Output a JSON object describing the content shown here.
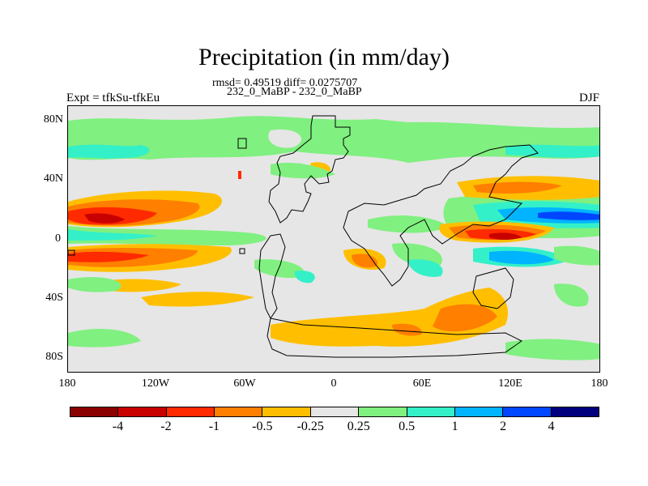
{
  "title": "Precipitation (in mm/day)",
  "stats_line": "rmsd= 0.49519 diff= 0.0275707",
  "case_line": "232_0_MaBP - 232_0_MaBP",
  "experiment": "Expt = tfkSu-tfkEu",
  "season": "DJF",
  "y_ticks": [
    "80N",
    "40N",
    "0",
    "40S",
    "80S"
  ],
  "x_ticks": [
    "180",
    "120W",
    "60W",
    "0",
    "60E",
    "120E",
    "180"
  ],
  "colorbar": {
    "colors": [
      "#8b0000",
      "#c80000",
      "#ff2a00",
      "#ff7f00",
      "#ffbf00",
      "#e6e6e6",
      "#80f080",
      "#33f0c8",
      "#00b4ff",
      "#0046ff",
      "#00007f"
    ],
    "labels": [
      "-4",
      "-2",
      "-1",
      "-0.5",
      "-0.25",
      "0.25",
      "0.5",
      "1",
      "2",
      "4"
    ]
  },
  "map_colors": {
    "background": "#e6e6e6",
    "land_outline": "#000000"
  }
}
